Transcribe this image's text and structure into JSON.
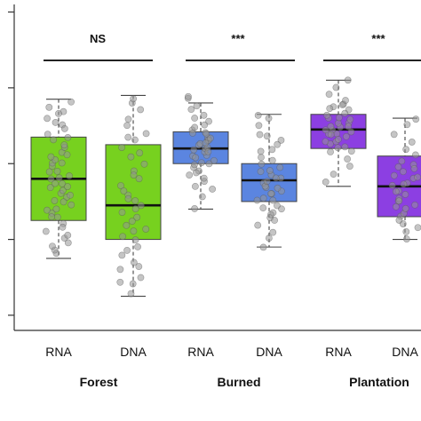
{
  "chart_data": {
    "type": "boxplot",
    "title": "",
    "xlabel": "",
    "ylabel": "",
    "ylim": [
      0,
      4.3
    ],
    "groups": [
      {
        "name": "Forest",
        "significance": "NS",
        "boxes": [
          {
            "label": "RNA",
            "color": "#77d11f",
            "min": 0.95,
            "q1": 1.45,
            "median": 2.0,
            "q3": 2.55,
            "max": 3.05,
            "points": [
              1.0,
              1.05,
              1.1,
              1.2,
              1.3,
              1.4,
              1.5,
              1.55,
              1.6,
              1.65,
              1.7,
              1.75,
              1.8,
              1.85,
              1.9,
              1.95,
              2.0,
              2.05,
              2.1,
              2.15,
              2.2,
              2.25,
              2.3,
              2.35,
              2.4,
              2.45,
              2.5,
              2.55,
              2.6,
              2.7,
              2.8,
              2.9,
              3.0,
              2.65,
              2.3,
              2.2,
              2.1,
              1.9,
              1.8,
              1.7,
              1.6,
              1.5,
              1.35,
              1.25,
              1.15,
              2.75,
              2.85,
              2.95,
              2.0,
              1.95
            ]
          },
          {
            "label": "DNA",
            "color": "#77d11f",
            "min": 0.45,
            "q1": 1.2,
            "median": 1.65,
            "q3": 2.45,
            "max": 3.1,
            "points": [
              0.5,
              0.6,
              0.7,
              0.8,
              0.9,
              1.0,
              1.05,
              1.1,
              1.2,
              1.3,
              1.4,
              1.5,
              1.55,
              1.6,
              1.7,
              1.8,
              1.9,
              2.0,
              2.1,
              2.2,
              2.3,
              2.4,
              2.5,
              2.6,
              2.7,
              2.8,
              2.9,
              3.0,
              3.05,
              1.25,
              1.35,
              1.45,
              1.75,
              1.85,
              2.05,
              2.35,
              2.55,
              0.65,
              0.85,
              1.65
            ]
          }
        ]
      },
      {
        "name": "Burned",
        "significance": "***",
        "boxes": [
          {
            "label": "RNA",
            "color": "#5b85e0",
            "min": 1.6,
            "q1": 2.2,
            "median": 2.4,
            "q3": 2.62,
            "max": 3.0,
            "points": [
              1.6,
              1.75,
              1.85,
              1.95,
              2.0,
              2.05,
              2.1,
              2.15,
              2.2,
              2.25,
              2.3,
              2.35,
              2.4,
              2.45,
              2.5,
              2.55,
              2.6,
              2.65,
              2.7,
              2.75,
              2.8,
              2.85,
              2.9,
              2.95,
              3.05,
              3.1,
              2.4,
              2.3,
              2.5,
              2.2,
              2.45,
              2.35,
              2.55,
              2.6,
              2.28,
              2.38,
              2.48,
              2.58,
              2.68,
              2.18,
              2.08,
              1.9
            ]
          },
          {
            "label": "DNA",
            "color": "#5b85e0",
            "min": 1.1,
            "q1": 1.7,
            "median": 1.98,
            "q3": 2.2,
            "max": 2.85,
            "points": [
              1.1,
              1.2,
              1.3,
              1.4,
              1.5,
              1.55,
              1.6,
              1.65,
              1.7,
              1.75,
              1.8,
              1.85,
              1.9,
              1.95,
              2.0,
              2.05,
              2.1,
              2.15,
              2.2,
              2.25,
              2.3,
              2.4,
              2.5,
              2.6,
              2.7,
              2.8,
              2.85,
              1.72,
              1.82,
              1.92,
              2.02,
              2.12,
              1.62,
              1.52,
              1.45,
              2.35,
              2.45,
              2.55,
              1.98,
              1.88
            ]
          }
        ]
      },
      {
        "name": "Plantation",
        "significance": "***",
        "boxes": [
          {
            "label": "RNA",
            "color": "#8c3fe2",
            "min": 1.9,
            "q1": 2.4,
            "median": 2.65,
            "q3": 2.85,
            "max": 3.3,
            "points": [
              1.95,
              2.05,
              2.15,
              2.25,
              2.35,
              2.4,
              2.45,
              2.5,
              2.55,
              2.6,
              2.65,
              2.7,
              2.75,
              2.8,
              2.85,
              2.9,
              2.95,
              3.0,
              3.05,
              3.1,
              3.2,
              3.3,
              2.62,
              2.68,
              2.72,
              2.58,
              2.52,
              2.48,
              2.78,
              2.82,
              2.88,
              2.42,
              2.38,
              2.66,
              2.7,
              2.6,
              2.92,
              2.98
            ]
          },
          {
            "label": "DNA",
            "color": "#8c3fe2",
            "min": 1.2,
            "q1": 1.5,
            "median": 1.9,
            "q3": 2.3,
            "max": 2.8,
            "points": [
              1.2,
              1.3,
              1.4,
              1.5,
              1.55,
              1.6,
              1.65,
              1.7,
              1.75,
              1.8,
              1.85,
              1.9,
              1.95,
              2.0,
              2.05,
              2.1,
              2.15,
              2.2,
              2.25,
              2.3,
              2.4,
              2.5,
              2.6,
              2.7,
              2.8,
              1.62,
              1.72,
              1.82,
              1.92,
              2.02,
              2.12,
              1.45,
              1.35
            ]
          }
        ]
      }
    ]
  }
}
